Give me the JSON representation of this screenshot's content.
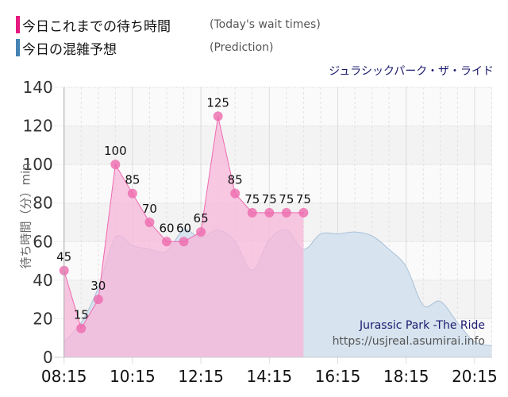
{
  "legend": [
    {
      "label_jp": "今日これまでの待ち時間",
      "label_en": "(Today's wait times)",
      "color": "#e6197f"
    },
    {
      "label_jp": "今日の混雑予想",
      "label_en": "(Prediction)",
      "color": "#4682b4"
    }
  ],
  "ride_name_jp": "ジュラシックパーク・ザ・ライド",
  "credit": {
    "ride_name_en": "Jurassic Park -The Ride",
    "url": "https://usjreal.asumirai.info"
  },
  "y_axis_label": "待ち時間（分）min",
  "colors": {
    "actual_line": "#ee6aae",
    "actual_fill": "#f7b6d9",
    "actual_marker": "#ee6aae",
    "prediction_line": "#a9c1d8",
    "prediction_fill": "#d7e3ee"
  },
  "chart_data": {
    "type": "area",
    "title": "ジュラシックパーク・ザ・ライド",
    "xlabel": "",
    "ylabel": "待ち時間（分）min",
    "ylim": [
      0,
      140
    ],
    "yticks": [
      0,
      20,
      40,
      60,
      80,
      100,
      120,
      140
    ],
    "xticks": [
      "08:15",
      "10:15",
      "12:15",
      "14:15",
      "16:15",
      "18:15",
      "20:15"
    ],
    "grid": true,
    "legend_position": "top-left",
    "series": [
      {
        "name": "今日これまでの待ち時間 (Today's wait times)",
        "x": [
          "08:15",
          "08:45",
          "09:15",
          "09:45",
          "10:15",
          "10:45",
          "11:15",
          "11:45",
          "12:15",
          "12:45",
          "13:15",
          "13:45",
          "14:15",
          "14:45",
          "15:15"
        ],
        "values": [
          45,
          15,
          30,
          100,
          85,
          70,
          60,
          60,
          65,
          125,
          85,
          75,
          75,
          75,
          75
        ],
        "labels_shown": true
      },
      {
        "name": "今日の混雑予想 (Prediction)",
        "x": [
          "08:15",
          "08:45",
          "09:15",
          "09:45",
          "10:15",
          "10:45",
          "11:15",
          "11:45",
          "12:15",
          "12:45",
          "13:15",
          "13:45",
          "14:15",
          "14:45",
          "15:15",
          "15:45",
          "16:15",
          "16:45",
          "17:15",
          "17:45",
          "18:15",
          "18:45",
          "19:15",
          "19:45",
          "20:15",
          "20:45"
        ],
        "values": [
          8,
          18,
          36,
          62,
          58,
          56,
          55,
          66,
          62,
          66,
          60,
          45,
          61,
          66,
          56,
          64,
          64,
          65,
          63,
          56,
          47,
          27,
          29,
          18,
          8,
          6
        ]
      }
    ]
  }
}
